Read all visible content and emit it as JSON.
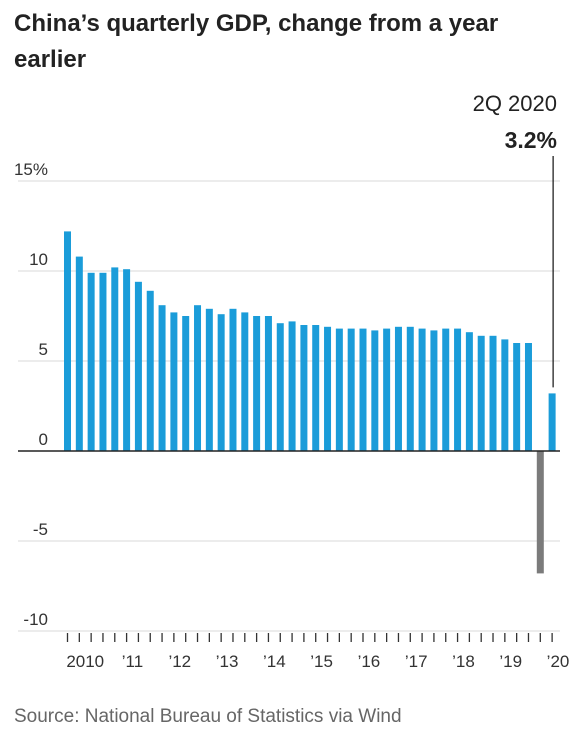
{
  "title": "China’s quarterly GDP, change from a year earlier",
  "source": "Source: National Bureau of Statistics via Wind",
  "annotation": {
    "period": "2Q 2020",
    "value": "3.2%"
  },
  "colors": {
    "bar": "#1a9cd9",
    "negative_bar": "#7b7b7b",
    "grid": "#d9d9d9",
    "zero_line": "#222222"
  },
  "chart_data": {
    "type": "bar",
    "title": "China’s quarterly GDP, change from a year earlier",
    "xlabel": "",
    "ylabel": "",
    "ylim": [
      -10,
      15
    ],
    "y_ticks": [
      {
        "value": 15,
        "label": "15%"
      },
      {
        "value": 10,
        "label": "10"
      },
      {
        "value": 5,
        "label": "5"
      },
      {
        "value": 0,
        "label": "0"
      },
      {
        "value": -5,
        "label": "-5"
      },
      {
        "value": -10,
        "label": "-10"
      }
    ],
    "x_tick_labels": [
      "2010",
      "’11",
      "’12",
      "’13",
      "’14",
      "’15",
      "’16",
      "’17",
      "’18",
      "’19",
      "’20"
    ],
    "grid": true,
    "categories": [
      "1Q 2010",
      "2Q 2010",
      "3Q 2010",
      "4Q 2010",
      "1Q 2011",
      "2Q 2011",
      "3Q 2011",
      "4Q 2011",
      "1Q 2012",
      "2Q 2012",
      "3Q 2012",
      "4Q 2012",
      "1Q 2013",
      "2Q 2013",
      "3Q 2013",
      "4Q 2013",
      "1Q 2014",
      "2Q 2014",
      "3Q 2014",
      "4Q 2014",
      "1Q 2015",
      "2Q 2015",
      "3Q 2015",
      "4Q 2015",
      "1Q 2016",
      "2Q 2016",
      "3Q 2016",
      "4Q 2016",
      "1Q 2017",
      "2Q 2017",
      "3Q 2017",
      "4Q 2017",
      "1Q 2018",
      "2Q 2018",
      "3Q 2018",
      "4Q 2018",
      "1Q 2019",
      "2Q 2019",
      "3Q 2019",
      "4Q 2019",
      "1Q 2020",
      "2Q 2020"
    ],
    "values": [
      12.2,
      10.8,
      9.9,
      9.9,
      10.2,
      10.1,
      9.4,
      8.9,
      8.1,
      7.7,
      7.5,
      8.1,
      7.9,
      7.6,
      7.9,
      7.7,
      7.5,
      7.5,
      7.1,
      7.2,
      7.0,
      7.0,
      6.9,
      6.8,
      6.8,
      6.8,
      6.7,
      6.8,
      6.9,
      6.9,
      6.8,
      6.7,
      6.8,
      6.8,
      6.6,
      6.4,
      6.4,
      6.2,
      6.0,
      6.0,
      -6.8,
      3.2
    ]
  }
}
